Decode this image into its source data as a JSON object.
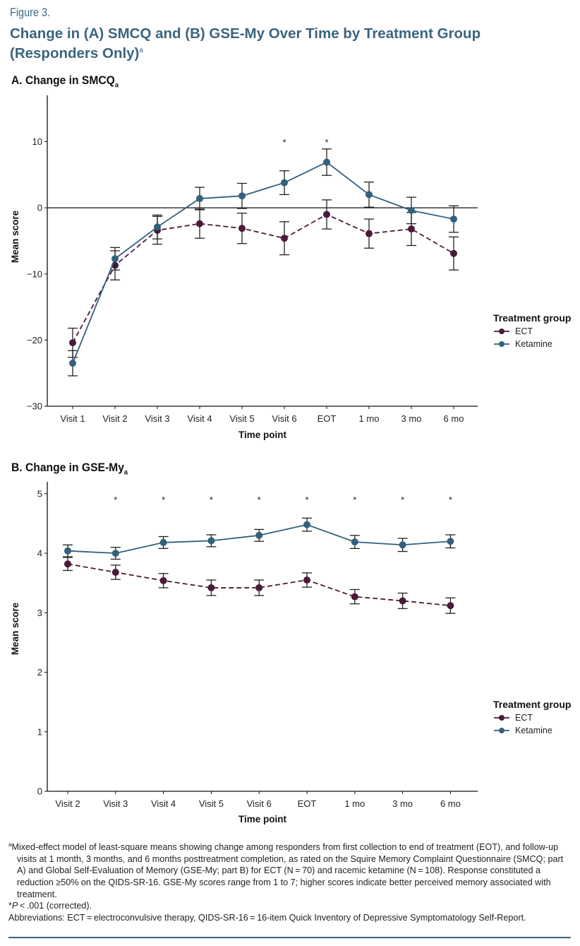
{
  "figure": {
    "label": "Figure 3.",
    "title": "Change in (A) SMCQ and (B) GSE-My Over Time by Treatment Group (Responders Only)",
    "title_sup": "a"
  },
  "colors": {
    "ECT": "#4a1a3a",
    "Ketamine": "#33607c",
    "axis": "#111111",
    "errorbar": "#222222"
  },
  "chart_data": [
    {
      "type": "line",
      "panel_title": "A. Change in SMCQ",
      "panel_sub": "a",
      "xlabel": "Time point",
      "ylabel": "Mean score",
      "categories": [
        "Visit 1",
        "Visit 2",
        "Visit 3",
        "Visit 4",
        "Visit 5",
        "Visit 6",
        "EOT",
        "1 mo",
        "3 mo",
        "6 mo"
      ],
      "ylim": [
        -30,
        17
      ],
      "yticks": [
        10,
        0,
        -10,
        -20,
        -30
      ],
      "ytick_labels": [
        "10",
        "0",
        "−10",
        "−20",
        "−30"
      ],
      "zero_line": true,
      "significance": [
        "",
        "",
        "",
        "",
        "",
        "*",
        "*",
        "",
        "",
        ""
      ],
      "legend": {
        "title": "Treatment group",
        "position": "right"
      },
      "series": [
        {
          "name": "ECT",
          "style": "dashed",
          "values": [
            -20.4,
            -8.7,
            -3.4,
            -2.4,
            -3.1,
            -4.6,
            -1.0,
            -3.9,
            -3.2,
            -6.9
          ],
          "error": [
            2.2,
            2.2,
            2.1,
            2.2,
            2.3,
            2.5,
            2.2,
            2.2,
            2.5,
            2.5
          ]
        },
        {
          "name": "Ketamine",
          "style": "solid",
          "values": [
            -23.5,
            -7.7,
            -2.9,
            1.4,
            1.8,
            3.8,
            6.9,
            2.0,
            -0.4,
            -1.7
          ],
          "error": [
            1.9,
            1.7,
            1.8,
            1.7,
            1.9,
            1.8,
            2.0,
            1.9,
            2.0,
            2.0
          ]
        }
      ]
    },
    {
      "type": "line",
      "panel_title": "B. Change in GSE-My",
      "panel_sub": "a",
      "xlabel": "Time point",
      "ylabel": "Mean score",
      "categories": [
        "Visit 2",
        "Visit 3",
        "Visit 4",
        "Visit 5",
        "Visit 6",
        "EOT",
        "1 mo",
        "3 mo",
        "6 mo"
      ],
      "ylim": [
        0,
        5.2
      ],
      "yticks": [
        5,
        4,
        3,
        2,
        1,
        0
      ],
      "ytick_labels": [
        "5",
        "4",
        "3",
        "2",
        "1",
        "0"
      ],
      "zero_line": false,
      "significance": [
        "",
        "*",
        "*",
        "*",
        "*",
        "*",
        "*",
        "*",
        "*"
      ],
      "legend": {
        "title": "Treatment group",
        "position": "right"
      },
      "series": [
        {
          "name": "ECT",
          "style": "dashed",
          "values": [
            3.82,
            3.68,
            3.54,
            3.42,
            3.42,
            3.55,
            3.27,
            3.2,
            3.12
          ],
          "error": [
            0.11,
            0.12,
            0.12,
            0.13,
            0.13,
            0.12,
            0.12,
            0.13,
            0.13
          ]
        },
        {
          "name": "Ketamine",
          "style": "solid",
          "values": [
            4.04,
            4.0,
            4.18,
            4.21,
            4.3,
            4.48,
            4.19,
            4.14,
            4.2
          ],
          "error": [
            0.1,
            0.1,
            0.1,
            0.1,
            0.1,
            0.11,
            0.11,
            0.11,
            0.11
          ]
        }
      ]
    }
  ],
  "footnotes": {
    "a_sup": "a",
    "a_text": "Mixed-effect model of least-square means showing change among responders from first collection to end of treatment (EOT), and follow-up visits at 1 month, 3 months, and 6 months posttreatment completion, as rated on the Squire Memory Complaint Questionnaire (SMCQ; part A) and Global Self-Evaluation of Memory (GSE-My; part B) for ECT (N = 70) and racemic ketamine (N = 108). Response constituted a reduction ≥50% on the QIDS-SR-16. GSE-My scores range from 1 to 7; higher scores indicate better perceived memory associated with treatment.",
    "p_star": "*",
    "p_italic": "P",
    "p_text": " < .001 (corrected).",
    "abbreviations": "Abbreviations: ECT = electroconvulsive therapy, QIDS-SR-16 = 16-item Quick Inventory of Depressive Symptomatology Self-Report."
  }
}
